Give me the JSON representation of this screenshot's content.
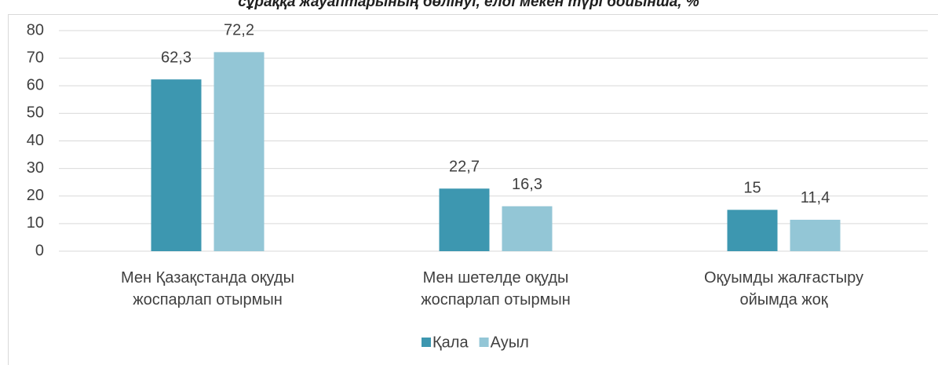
{
  "chart_data": {
    "type": "bar",
    "title": "сұраққа жауаптарының бөлінуі, елді мекен түрі бойынша, %",
    "categories": [
      "Мен Қазақстанда оқуды жоспарлап отырмын",
      "Мен шетелде оқуды жоспарлап отырмын",
      "Оқуымды жалғастыру ойымда жоқ"
    ],
    "series": [
      {
        "name": "Қала",
        "color": "#3d97b0",
        "values": [
          62.3,
          22.7,
          15
        ],
        "value_labels": [
          "62,3",
          "22,7",
          "15"
        ]
      },
      {
        "name": "Ауыл",
        "color": "#93c6d6",
        "values": [
          72.2,
          16.3,
          11.4
        ],
        "value_labels": [
          "72,2",
          "16,3",
          "11,4"
        ]
      }
    ],
    "ylim": [
      0,
      80
    ],
    "yticks": [
      0,
      10,
      20,
      30,
      40,
      50,
      60,
      70,
      80
    ],
    "grid": true,
    "legend": "bottom"
  }
}
